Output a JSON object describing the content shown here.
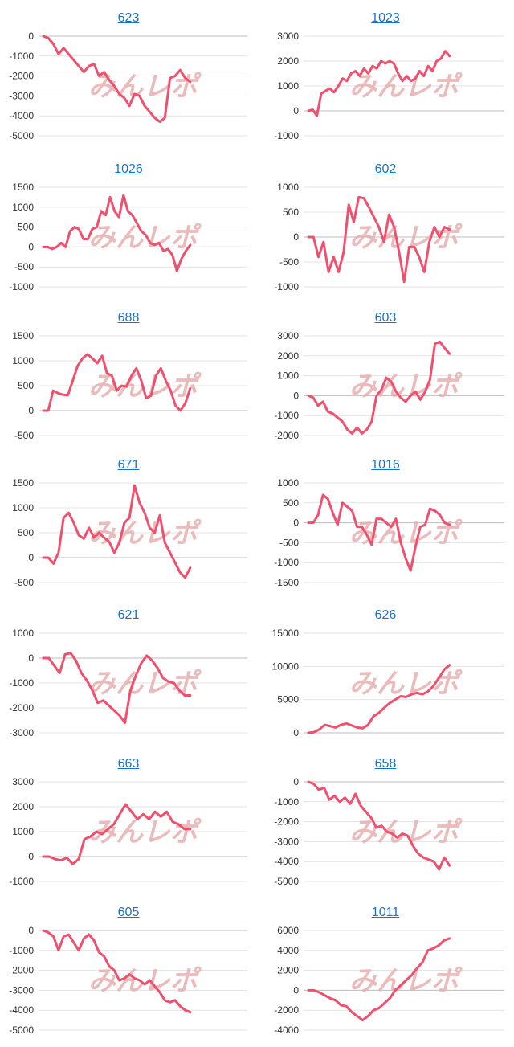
{
  "watermark": {
    "part1": "みんレポ",
    "part2": "",
    "color1": "#e8b0b0",
    "color2": "#b5b5b5"
  },
  "line_color": "#f0506e",
  "title_color": "#1a73c8",
  "chart_data": [
    {
      "title": "623",
      "type": "line",
      "ylim": [
        -5000,
        0
      ],
      "yticks": [
        0,
        -1000,
        -2000,
        -3000,
        -4000,
        -5000
      ],
      "values": [
        0,
        -100,
        -400,
        -900,
        -600,
        -900,
        -1200,
        -1500,
        -1800,
        -1500,
        -1400,
        -2000,
        -1800,
        -2200,
        -2500,
        -2900,
        -3100,
        -3500,
        -2900,
        -3000,
        -3500,
        -3800,
        -4100,
        -4300,
        -4100,
        -2100,
        -2000,
        -1700,
        -2100,
        -2300
      ]
    },
    {
      "title": "1023",
      "type": "line",
      "ylim": [
        -1000,
        3000
      ],
      "yticks": [
        3000,
        2000,
        1000,
        0,
        -1000
      ],
      "values": [
        0,
        50,
        -200,
        700,
        800,
        900,
        750,
        1000,
        1300,
        1200,
        1500,
        1600,
        1400,
        1700,
        1500,
        1800,
        1700,
        2000,
        1900,
        2000,
        1900,
        1500,
        1200,
        1400,
        1200,
        1300,
        1600,
        1400,
        1800,
        1600,
        2000,
        2100,
        2400,
        2200
      ]
    },
    {
      "title": "1026",
      "type": "line",
      "ylim": [
        -1000,
        1500
      ],
      "yticks": [
        1500,
        1000,
        500,
        0,
        -500,
        -1000
      ],
      "values": [
        0,
        0,
        -50,
        0,
        100,
        0,
        400,
        500,
        450,
        200,
        200,
        450,
        500,
        900,
        800,
        1250,
        900,
        750,
        1300,
        900,
        800,
        600,
        400,
        300,
        100,
        50,
        100,
        -100,
        -50,
        -200,
        -600,
        -300,
        -100,
        50
      ]
    },
    {
      "title": "602",
      "type": "line",
      "ylim": [
        -1000,
        1000
      ],
      "yticks": [
        1000,
        500,
        0,
        -500,
        -1000
      ],
      "values": [
        0,
        0,
        -400,
        -100,
        -700,
        -400,
        -700,
        -300,
        650,
        300,
        800,
        780,
        600,
        400,
        200,
        -100,
        450,
        200,
        -300,
        -900,
        -200,
        -200,
        -400,
        -700,
        -100,
        200,
        0,
        200,
        150
      ]
    },
    {
      "title": "688",
      "type": "line",
      "ylim": [
        -500,
        1500
      ],
      "yticks": [
        1500,
        1000,
        500,
        0,
        -500
      ],
      "values": [
        0,
        0,
        400,
        350,
        320,
        310,
        600,
        900,
        1050,
        1130,
        1050,
        950,
        1100,
        750,
        700,
        400,
        500,
        480,
        700,
        850,
        600,
        250,
        300,
        700,
        850,
        600,
        400,
        100,
        0,
        150,
        450
      ]
    },
    {
      "title": "603",
      "type": "line",
      "ylim": [
        -2000,
        3000
      ],
      "yticks": [
        3000,
        2000,
        1000,
        0,
        -1000,
        -2000
      ],
      "values": [
        0,
        -100,
        -500,
        -300,
        -800,
        -900,
        -1100,
        -1300,
        -1700,
        -1900,
        -1600,
        -1900,
        -1700,
        -1300,
        0,
        300,
        900,
        700,
        200,
        -100,
        -300,
        0,
        200,
        -200,
        200,
        800,
        2600,
        2700,
        2400,
        2100
      ]
    },
    {
      "title": "671",
      "type": "line",
      "ylim": [
        -500,
        1500
      ],
      "yticks": [
        1500,
        1000,
        500,
        0,
        -500
      ],
      "values": [
        0,
        0,
        -120,
        100,
        800,
        900,
        700,
        450,
        380,
        600,
        400,
        500,
        400,
        320,
        100,
        300,
        700,
        800,
        1450,
        1100,
        900,
        600,
        500,
        850,
        300,
        100,
        -100,
        -300,
        -400,
        -200
      ]
    },
    {
      "title": "1016",
      "type": "line",
      "ylim": [
        -1500,
        1000
      ],
      "yticks": [
        1000,
        500,
        0,
        -500,
        -1000,
        -1500
      ],
      "values": [
        0,
        0,
        200,
        700,
        600,
        250,
        -50,
        500,
        400,
        300,
        -100,
        -100,
        -300,
        -550,
        100,
        100,
        0,
        -100,
        100,
        -500,
        -900,
        -1200,
        -600,
        -100,
        -50,
        350,
        300,
        200,
        0,
        -50
      ]
    },
    {
      "title": "621",
      "type": "line",
      "ylim": [
        -3000,
        1000
      ],
      "yticks": [
        1000,
        0,
        -1000,
        -2000,
        -3000
      ],
      "values": [
        0,
        0,
        -300,
        -600,
        150,
        200,
        -100,
        -600,
        -900,
        -1300,
        -1800,
        -1700,
        -1900,
        -2100,
        -2300,
        -2600,
        -1300,
        -700,
        -200,
        100,
        -100,
        -400,
        -800,
        -950,
        -1000,
        -1300,
        -1500,
        -1500
      ]
    },
    {
      "title": "626",
      "type": "line",
      "ylim": [
        0,
        15000
      ],
      "yticks": [
        15000,
        10000,
        5000,
        0
      ],
      "values": [
        0,
        100,
        500,
        1200,
        1000,
        800,
        1200,
        1400,
        1100,
        800,
        700,
        1200,
        2500,
        3000,
        3800,
        4500,
        5000,
        5500,
        5400,
        5800,
        6000,
        5800,
        6200,
        7000,
        8200,
        9500,
        10200
      ]
    },
    {
      "title": "663",
      "type": "line",
      "ylim": [
        -1000,
        3000
      ],
      "yticks": [
        3000,
        2000,
        1000,
        0,
        -1000
      ],
      "values": [
        0,
        0,
        -100,
        -150,
        -50,
        -300,
        -100,
        700,
        800,
        1000,
        900,
        1100,
        1300,
        1700,
        2100,
        1800,
        1500,
        1700,
        1500,
        1800,
        1600,
        1800,
        1400,
        1300,
        1100,
        1100
      ]
    },
    {
      "title": "658",
      "type": "line",
      "ylim": [
        -5000,
        0
      ],
      "yticks": [
        0,
        -1000,
        -2000,
        -3000,
        -4000,
        -5000
      ],
      "values": [
        0,
        -100,
        -400,
        -300,
        -900,
        -700,
        -1000,
        -800,
        -1100,
        -600,
        -1200,
        -1500,
        -1800,
        -2300,
        -2200,
        -2500,
        -2600,
        -2800,
        -2600,
        -2700,
        -3200,
        -3600,
        -3800,
        -3900,
        -4000,
        -4400,
        -3800,
        -4200
      ]
    },
    {
      "title": "605",
      "type": "line",
      "ylim": [
        -5000,
        0
      ],
      "yticks": [
        0,
        -1000,
        -2000,
        -3000,
        -4000,
        -5000
      ],
      "values": [
        0,
        -100,
        -300,
        -1000,
        -300,
        -200,
        -600,
        -1000,
        -400,
        -200,
        -500,
        -1100,
        -1300,
        -1800,
        -2000,
        -2500,
        -2400,
        -2200,
        -2400,
        -2500,
        -2700,
        -2500,
        -2800,
        -3100,
        -3500,
        -3600,
        -3500,
        -3800,
        -4000,
        -4100
      ]
    },
    {
      "title": "1011",
      "type": "line",
      "ylim": [
        -4000,
        6000
      ],
      "yticks": [
        6000,
        4000,
        2000,
        0,
        -2000,
        -4000
      ],
      "values": [
        0,
        0,
        -200,
        -500,
        -800,
        -1000,
        -1500,
        -1600,
        -2200,
        -2600,
        -3000,
        -2600,
        -2000,
        -1800,
        -1300,
        -800,
        0,
        500,
        1000,
        1500,
        2200,
        2800,
        4000,
        4200,
        4500,
        5000,
        5200
      ]
    }
  ]
}
